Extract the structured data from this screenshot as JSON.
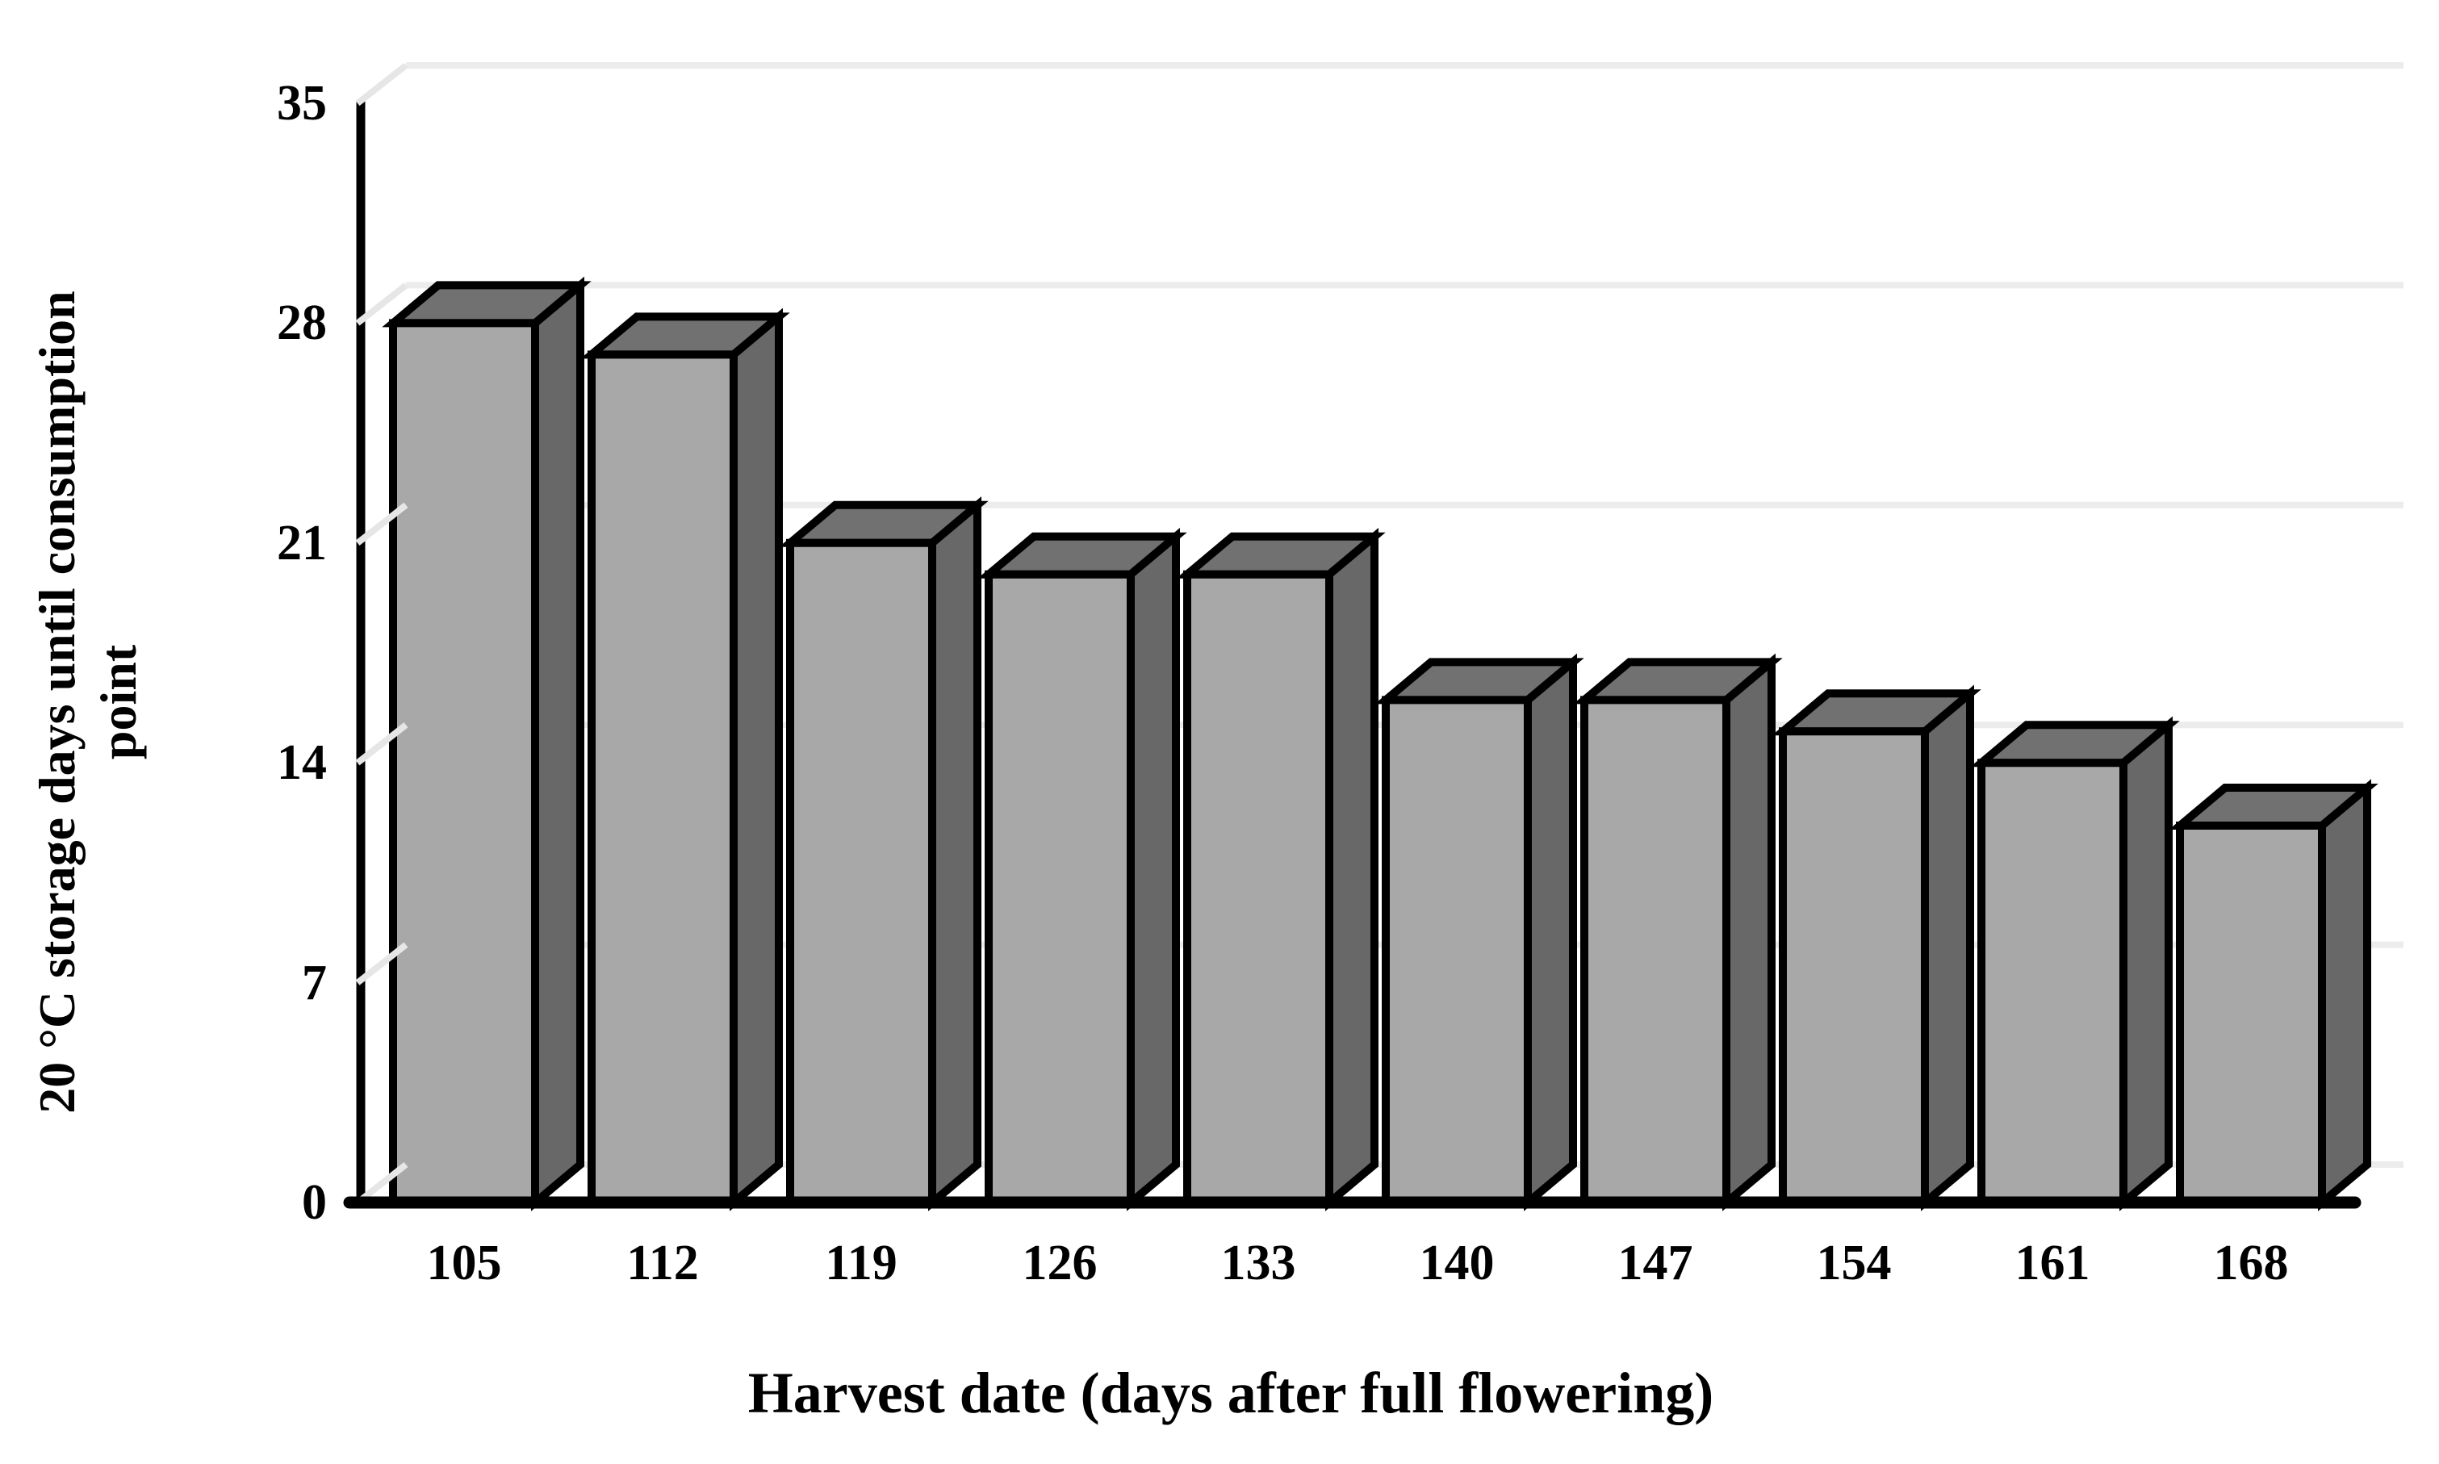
{
  "chart_data": {
    "type": "bar",
    "style": "3d-column",
    "title": "",
    "categories": [
      "105",
      "112",
      "119",
      "126",
      "133",
      "140",
      "147",
      "154",
      "161",
      "168"
    ],
    "values": [
      28,
      27,
      21,
      20,
      20,
      16,
      16,
      15,
      14,
      12
    ],
    "xlabel": "Harvest date (days after full flowering)",
    "ylabel": "20 °C storage days until consumption point",
    "ylabel_lines": [
      "20 °C storage days until consumption",
      "point"
    ],
    "y_ticks": [
      0,
      7,
      14,
      21,
      28,
      35
    ],
    "ylim": [
      0,
      35
    ],
    "grid": true,
    "legend_position": "none",
    "colors": {
      "bar_front": "#a8a8a8",
      "bar_top": "#717171",
      "bar_side": "#686868",
      "outline": "#000000",
      "gridline": "#ececec",
      "connector": "#e6e6e6",
      "axis": "#000000",
      "background": "#ffffff",
      "text": "#000000"
    }
  }
}
